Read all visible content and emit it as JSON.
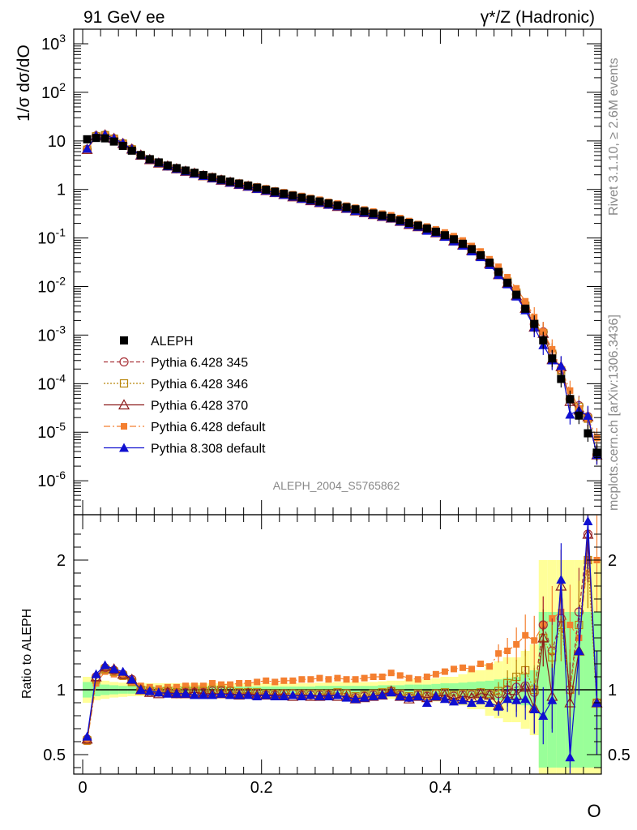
{
  "header": {
    "left_title": "91 GeV ee",
    "right_title": "γ*/Z (Hadronic)"
  },
  "side": {
    "rivet": "Rivet 3.1.10, ≥ 2.6M events",
    "mcplots": "mcplots.cern.ch [arXiv:1306.3436]"
  },
  "watermark": "ALEPH_2004_S5765862",
  "colors": {
    "aleph": "#000000",
    "p345": "#a83238",
    "p346": "#b8860b",
    "p370": "#8b1a1a",
    "p6def": "#f47f30",
    "p8def": "#1010d0",
    "band_yellow": "#ffff99",
    "band_green": "#99ff99"
  },
  "chart_data": [
    {
      "type": "scatter",
      "panel": "main",
      "ylabel": "1/σ  dσ/dO",
      "yscale": "log",
      "ylim": [
        2e-07,
        2000
      ],
      "xlim": [
        -0.01,
        0.58
      ],
      "y_tick_labels": [
        "10^-6",
        "10^-5",
        "10^-4",
        "10^-3",
        "10^-2",
        "10^-1",
        "1",
        "10",
        "10^2",
        "10^3"
      ],
      "legend_position": "lower-left",
      "series": [
        {
          "name": "ALEPH",
          "key": "aleph",
          "x": [
            0.005,
            0.015,
            0.025,
            0.035,
            0.045,
            0.055,
            0.065,
            0.075,
            0.085,
            0.095,
            0.105,
            0.115,
            0.125,
            0.135,
            0.145,
            0.155,
            0.165,
            0.175,
            0.185,
            0.195,
            0.205,
            0.215,
            0.225,
            0.235,
            0.245,
            0.255,
            0.265,
            0.275,
            0.285,
            0.295,
            0.305,
            0.315,
            0.325,
            0.335,
            0.345,
            0.355,
            0.365,
            0.375,
            0.385,
            0.395,
            0.405,
            0.415,
            0.425,
            0.435,
            0.445,
            0.455,
            0.465,
            0.475,
            0.485,
            0.495,
            0.505,
            0.515,
            0.525,
            0.535,
            0.545,
            0.555,
            0.565,
            0.575
          ],
          "y": [
            10.8,
            11.5,
            11.3,
            9.7,
            7.9,
            6.3,
            5.1,
            4.2,
            3.6,
            3.1,
            2.75,
            2.45,
            2.2,
            1.98,
            1.78,
            1.6,
            1.45,
            1.32,
            1.2,
            1.09,
            0.99,
            0.9,
            0.82,
            0.745,
            0.68,
            0.62,
            0.565,
            0.515,
            0.47,
            0.43,
            0.39,
            0.355,
            0.32,
            0.29,
            0.26,
            0.232,
            0.205,
            0.18,
            0.157,
            0.135,
            0.114,
            0.094,
            0.076,
            0.059,
            0.044,
            0.031,
            0.02,
            0.012,
            0.0068,
            0.0035,
            0.0017,
            0.00078,
            0.00033,
            0.000125,
            4.8e-05,
            2.2e-05,
            9.5e-06,
            3.8e-06
          ]
        },
        {
          "name": "Pythia 6.428 345",
          "key": "p345"
        },
        {
          "name": "Pythia 6.428 346",
          "key": "p346"
        },
        {
          "name": "Pythia 6.428 370",
          "key": "p370"
        },
        {
          "name": "Pythia 6.428 default",
          "key": "p6def"
        },
        {
          "name": "Pythia 8.308 default",
          "key": "p8def"
        }
      ]
    },
    {
      "type": "scatter",
      "panel": "ratio",
      "ylabel": "Ratio to ALEPH",
      "xlabel": "O",
      "ylim": [
        0.35,
        2.35
      ],
      "xlim": [
        -0.01,
        0.58
      ],
      "y_tick_labels": [
        "0.5",
        "1",
        "2"
      ],
      "x_tick_labels": [
        "0",
        "0.2",
        "0.4"
      ],
      "x": [
        0.005,
        0.015,
        0.025,
        0.035,
        0.045,
        0.055,
        0.065,
        0.075,
        0.085,
        0.095,
        0.105,
        0.115,
        0.125,
        0.135,
        0.145,
        0.155,
        0.165,
        0.175,
        0.185,
        0.195,
        0.205,
        0.215,
        0.225,
        0.235,
        0.245,
        0.255,
        0.265,
        0.275,
        0.285,
        0.295,
        0.305,
        0.315,
        0.325,
        0.335,
        0.345,
        0.355,
        0.365,
        0.375,
        0.385,
        0.395,
        0.405,
        0.415,
        0.425,
        0.435,
        0.445,
        0.455,
        0.465,
        0.475,
        0.485,
        0.495,
        0.505,
        0.515,
        0.525,
        0.535,
        0.545,
        0.555,
        0.565,
        0.575
      ],
      "series": [
        {
          "name": "Pythia 6.428 default",
          "key": "p6def",
          "ratio": [
            0.6,
            1.05,
            1.14,
            1.12,
            1.1,
            1.06,
            1.03,
            1.02,
            1.01,
            1.02,
            1.02,
            1.03,
            1.03,
            1.03,
            1.05,
            1.04,
            1.04,
            1.05,
            1.05,
            1.06,
            1.07,
            1.06,
            1.07,
            1.07,
            1.08,
            1.08,
            1.09,
            1.08,
            1.09,
            1.08,
            1.08,
            1.09,
            1.1,
            1.1,
            1.13,
            1.11,
            1.09,
            1.08,
            1.1,
            1.12,
            1.14,
            1.16,
            1.17,
            1.16,
            1.2,
            1.18,
            1.28,
            1.3,
            1.35,
            1.42,
            1.38,
            1.5,
            1.55,
            1.6,
            1.5,
            1.4,
            2.0,
            2.0
          ]
        },
        {
          "name": "Pythia 6.428 345",
          "key": "p345",
          "ratio": [
            0.62,
            1.1,
            1.17,
            1.15,
            1.12,
            1.08,
            1.0,
            0.98,
            0.98,
            0.98,
            0.97,
            0.98,
            0.98,
            0.98,
            0.99,
            0.99,
            0.99,
            0.97,
            0.98,
            0.97,
            0.96,
            0.96,
            0.97,
            0.97,
            0.96,
            0.96,
            0.96,
            0.96,
            0.97,
            0.97,
            0.94,
            0.95,
            0.96,
            0.97,
            0.99,
            0.96,
            0.94,
            0.96,
            0.95,
            0.97,
            0.97,
            0.95,
            0.96,
            0.96,
            0.97,
            0.96,
            0.97,
            1.0,
            1.02,
            1.03,
            0.98,
            1.5,
            1.3,
            1.55,
            1.0,
            1.6,
            2.2,
            0.9
          ]
        },
        {
          "name": "Pythia 6.428 346",
          "key": "p346",
          "ratio": [
            0.61,
            1.08,
            1.16,
            1.14,
            1.11,
            1.06,
            1.0,
            0.99,
            0.98,
            0.99,
            0.98,
            0.99,
            0.99,
            0.99,
            1.0,
            1.0,
            0.99,
            0.98,
            0.98,
            0.98,
            0.97,
            0.97,
            0.97,
            0.97,
            0.97,
            0.97,
            0.97,
            0.97,
            0.98,
            0.97,
            0.95,
            0.96,
            0.97,
            0.98,
            0.99,
            0.97,
            0.95,
            0.97,
            0.96,
            0.97,
            0.98,
            0.96,
            0.97,
            0.97,
            0.98,
            0.97,
            0.99,
            1.05,
            1.1,
            1.15,
            1.0,
            1.4,
            1.25,
            1.5,
            1.0,
            1.5,
            2.0,
            0.9
          ]
        },
        {
          "name": "Pythia 6.428 370",
          "key": "p370",
          "ratio": [
            0.62,
            1.1,
            1.18,
            1.16,
            1.12,
            1.08,
            1.0,
            0.98,
            0.97,
            0.98,
            0.97,
            0.97,
            0.98,
            0.97,
            0.97,
            0.97,
            0.97,
            0.96,
            0.97,
            0.96,
            0.96,
            0.96,
            0.96,
            0.95,
            0.96,
            0.95,
            0.95,
            0.96,
            0.95,
            0.95,
            0.93,
            0.94,
            0.95,
            0.96,
            0.99,
            0.95,
            0.93,
            0.95,
            0.94,
            0.95,
            0.96,
            0.93,
            0.95,
            0.94,
            0.97,
            0.96,
            0.88,
            0.97,
            0.96,
            1.02,
            0.86,
            1.4,
            0.95,
            1.8,
            0.9,
            1.3,
            2.2,
            0.9
          ]
        },
        {
          "name": "Pythia 8.308 default",
          "key": "p8def",
          "ratio": [
            0.64,
            1.12,
            1.19,
            1.16,
            1.14,
            1.08,
            1.0,
            0.99,
            0.98,
            0.97,
            0.97,
            0.97,
            0.96,
            0.96,
            0.96,
            0.97,
            0.96,
            0.96,
            0.96,
            0.95,
            0.96,
            0.95,
            0.95,
            0.96,
            0.95,
            0.96,
            0.95,
            0.95,
            0.96,
            0.94,
            0.93,
            0.94,
            0.95,
            0.96,
            0.98,
            0.95,
            0.94,
            0.95,
            0.9,
            0.95,
            0.93,
            0.91,
            0.92,
            0.9,
            0.92,
            0.9,
            0.87,
            0.93,
            0.92,
            0.93,
            0.85,
            0.8,
            0.92,
            1.85,
            0.48,
            1.3,
            2.3,
            0.9
          ]
        }
      ]
    }
  ],
  "bands": {
    "x": [
      0.0,
      0.01,
      0.02,
      0.03,
      0.04,
      0.05,
      0.06,
      0.07,
      0.08,
      0.09,
      0.1,
      0.11,
      0.12,
      0.13,
      0.14,
      0.15,
      0.16,
      0.17,
      0.18,
      0.19,
      0.2,
      0.21,
      0.22,
      0.23,
      0.24,
      0.25,
      0.26,
      0.27,
      0.28,
      0.29,
      0.3,
      0.31,
      0.32,
      0.33,
      0.34,
      0.35,
      0.36,
      0.37,
      0.38,
      0.39,
      0.4,
      0.41,
      0.42,
      0.43,
      0.44,
      0.45,
      0.46,
      0.47,
      0.48,
      0.49,
      0.5,
      0.51,
      0.52,
      0.53,
      0.54,
      0.55,
      0.56,
      0.57,
      0.58
    ],
    "green_half": [
      0.06,
      0.05,
      0.04,
      0.035,
      0.03,
      0.03,
      0.025,
      0.025,
      0.025,
      0.025,
      0.025,
      0.025,
      0.025,
      0.025,
      0.025,
      0.025,
      0.025,
      0.025,
      0.025,
      0.025,
      0.025,
      0.025,
      0.025,
      0.025,
      0.025,
      0.025,
      0.03,
      0.03,
      0.03,
      0.03,
      0.03,
      0.03,
      0.03,
      0.035,
      0.035,
      0.035,
      0.04,
      0.04,
      0.04,
      0.045,
      0.05,
      0.05,
      0.055,
      0.06,
      0.065,
      0.07,
      0.08,
      0.09,
      0.1,
      0.12,
      0.15,
      0.6,
      0.6,
      0.6,
      0.6,
      0.6,
      0.6,
      0.6,
      0.6
    ],
    "yellow_half": [
      0.1,
      0.08,
      0.07,
      0.06,
      0.055,
      0.05,
      0.05,
      0.05,
      0.05,
      0.05,
      0.05,
      0.05,
      0.05,
      0.05,
      0.05,
      0.05,
      0.05,
      0.05,
      0.05,
      0.05,
      0.05,
      0.05,
      0.05,
      0.05,
      0.05,
      0.05,
      0.055,
      0.055,
      0.06,
      0.06,
      0.06,
      0.06,
      0.06,
      0.065,
      0.07,
      0.07,
      0.08,
      0.08,
      0.08,
      0.09,
      0.1,
      0.1,
      0.12,
      0.15,
      0.15,
      0.2,
      0.22,
      0.25,
      0.25,
      0.3,
      0.35,
      1.0,
      1.0,
      1.0,
      1.0,
      1.0,
      1.0,
      1.0,
      1.0
    ]
  }
}
